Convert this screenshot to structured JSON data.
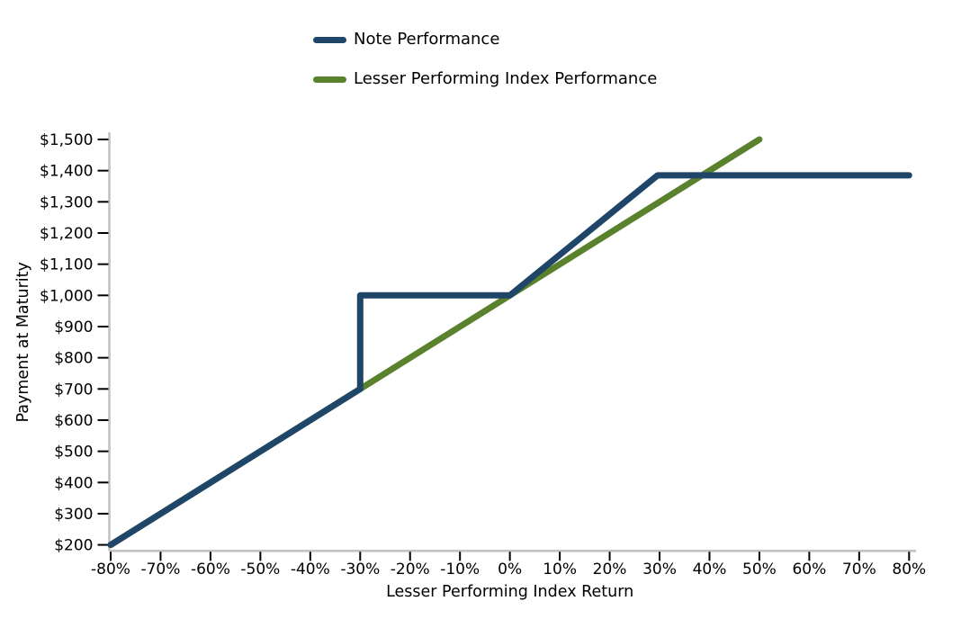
{
  "legend": {
    "items": [
      {
        "label": "Note Performance",
        "color": "#1f4569"
      },
      {
        "label": "Lesser Performing Index Performance",
        "color": "#5a822d"
      }
    ]
  },
  "chart_data": {
    "type": "line",
    "title": "",
    "xlabel": "Lesser Performing Index Return",
    "ylabel": "Payment at Maturity",
    "xlim": [
      -80,
      80
    ],
    "ylim": [
      200,
      1500
    ],
    "grid": false,
    "legend_position": "top-center",
    "x_tick_values": [
      -80,
      -70,
      -60,
      -50,
      -40,
      -30,
      -20,
      -10,
      0,
      10,
      20,
      30,
      40,
      50,
      60,
      70,
      80
    ],
    "x_tick_labels": [
      "-80%",
      "-70%",
      "-60%",
      "-50%",
      "-40%",
      "-30%",
      "-20%",
      "-10%",
      "0%",
      "10%",
      "20%",
      "30%",
      "40%",
      "50%",
      "60%",
      "70%",
      "80%"
    ],
    "y_tick_values": [
      200,
      300,
      400,
      500,
      600,
      700,
      800,
      900,
      1000,
      1100,
      1200,
      1300,
      1400,
      1500
    ],
    "y_tick_labels": [
      "$200",
      "$300",
      "$400",
      "$500",
      "$600",
      "$700",
      "$800",
      "$900",
      "$1,000",
      "$1,100",
      "$1,200",
      "$1,300",
      "$1,400",
      "$1,500"
    ],
    "series": [
      {
        "name": "Note Performance",
        "color": "#1f4569",
        "points": [
          [
            -80,
            200
          ],
          [
            -30,
            700
          ],
          [
            -30,
            1000
          ],
          [
            0,
            1000
          ],
          [
            29.6,
            1385
          ],
          [
            80,
            1385
          ]
        ]
      },
      {
        "name": "Lesser Performing Index Performance",
        "color": "#5a822d",
        "points": [
          [
            -80,
            200
          ],
          [
            50,
            1500
          ]
        ]
      }
    ],
    "styles": {
      "spine_color": "#c3c3c3",
      "tick_color": "#000000",
      "text_color": "#000000",
      "line_width": 7
    }
  }
}
